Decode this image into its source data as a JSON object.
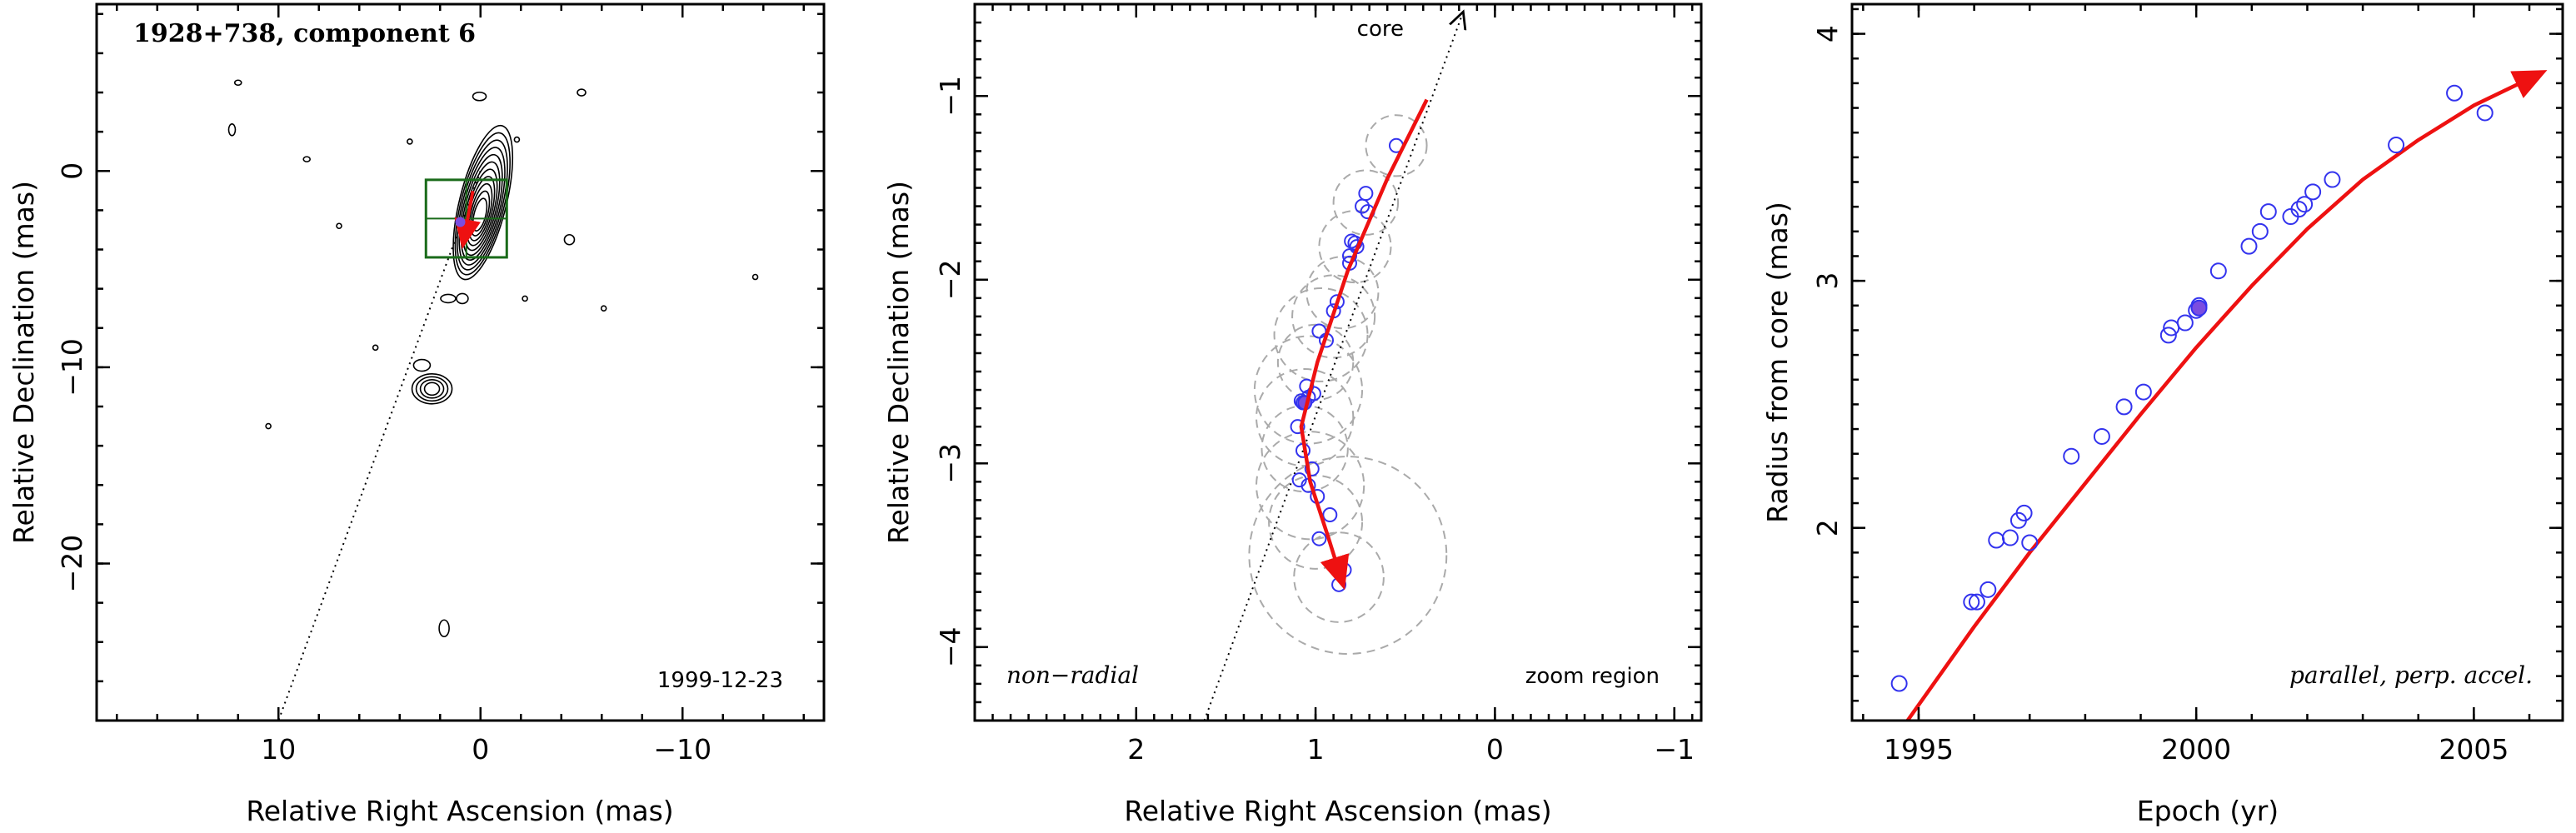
{
  "chart_data": [
    {
      "type": "contour",
      "title": "1928+738, component 6",
      "date_label": "1999-12-23",
      "xlabel": "Relative Right Ascension (mas)",
      "ylabel": "Relative Declination (mas)",
      "xlim": [
        19,
        -17
      ],
      "ylim": [
        -28,
        8.5
      ],
      "xticks": [
        10,
        0,
        -10
      ],
      "xtick_labels": [
        "10",
        "0",
        "−10"
      ],
      "yticks": [
        0,
        -10,
        -20
      ],
      "ytick_labels": [
        "0",
        "−10",
        "−20"
      ],
      "zoom_box": {
        "x": [
          2.7,
          -1.3
        ],
        "y": [
          -4.4,
          -0.45
        ],
        "color": "#1a6b1a"
      },
      "jet_direction_line": [
        [
          0.0,
          0.0
        ],
        [
          10.0,
          -28.0
        ]
      ],
      "trajectory_arrow": [
        [
          0.38,
          -1.02
        ],
        [
          0.85,
          -3.65
        ]
      ]
    },
    {
      "type": "scatter",
      "xlabel": "Relative Right Ascension (mas)",
      "ylabel": "Relative Declination (mas)",
      "xlim": [
        2.9,
        -1.15
      ],
      "ylim": [
        -4.4,
        -0.5
      ],
      "xticks": [
        2,
        1,
        0,
        -1
      ],
      "xtick_labels": [
        "2",
        "1",
        "0",
        "−1"
      ],
      "yticks": [
        -1,
        -2,
        -3,
        -4
      ],
      "ytick_labels": [
        "−1",
        "−2",
        "−3",
        "−4"
      ],
      "annotation_core": "core",
      "annotation_left": "non−radial",
      "annotation_right": "zoom region",
      "radial_line": [
        [
          1.62,
          -4.4
        ],
        [
          0.18,
          -0.55
        ]
      ],
      "arrow_path": [
        [
          0.38,
          -1.02
        ],
        [
          0.6,
          -1.45
        ],
        [
          0.82,
          -1.95
        ],
        [
          0.99,
          -2.45
        ],
        [
          1.08,
          -2.8
        ],
        [
          1.03,
          -3.1
        ],
        [
          0.93,
          -3.4
        ],
        [
          0.85,
          -3.65
        ]
      ],
      "points": [
        [
          0.55,
          -1.27
        ],
        [
          0.72,
          -1.53
        ],
        [
          0.74,
          -1.6
        ],
        [
          0.71,
          -1.63
        ],
        [
          0.78,
          -1.8
        ],
        [
          0.77,
          -1.82
        ],
        [
          0.8,
          -1.79
        ],
        [
          0.81,
          -1.87
        ],
        [
          0.81,
          -1.91
        ],
        [
          0.88,
          -2.12
        ],
        [
          0.9,
          -2.17
        ],
        [
          0.98,
          -2.28
        ],
        [
          0.94,
          -2.33
        ],
        [
          1.05,
          -2.58
        ],
        [
          1.04,
          -2.64
        ],
        [
          1.01,
          -2.62
        ],
        [
          1.08,
          -2.66
        ],
        [
          1.07,
          -2.67
        ],
        [
          1.1,
          -2.8
        ],
        [
          1.07,
          -2.93
        ],
        [
          1.02,
          -3.03
        ],
        [
          1.09,
          -3.09
        ],
        [
          1.04,
          -3.12
        ],
        [
          0.99,
          -3.18
        ],
        [
          0.92,
          -3.28
        ],
        [
          0.98,
          -3.41
        ],
        [
          0.84,
          -3.58
        ],
        [
          0.87,
          -3.66
        ]
      ],
      "highlight_point": [
        1.06,
        -2.67
      ],
      "error_circles": [
        [
          0.55,
          -1.27,
          0.17
        ],
        [
          0.72,
          -1.58,
          0.18
        ],
        [
          0.78,
          -1.82,
          0.2
        ],
        [
          0.85,
          -2.07,
          0.2
        ],
        [
          0.9,
          -2.2,
          0.23
        ],
        [
          0.97,
          -2.3,
          0.26
        ],
        [
          1.0,
          -2.45,
          0.21
        ],
        [
          1.04,
          -2.6,
          0.3
        ],
        [
          1.06,
          -2.75,
          0.27
        ],
        [
          1.06,
          -2.92,
          0.24
        ],
        [
          1.03,
          -3.12,
          0.3
        ],
        [
          1.0,
          -3.32,
          0.26
        ],
        [
          0.82,
          -3.5,
          0.55
        ],
        [
          0.87,
          -3.62,
          0.25
        ]
      ]
    },
    {
      "type": "scatter",
      "xlabel": "Epoch (yr)",
      "ylabel": "Radius from core (mas)",
      "annotation": "parallel, perp. accel.",
      "xlim": [
        1993.8,
        2006.6
      ],
      "ylim": [
        1.22,
        4.12
      ],
      "xticks": [
        1995,
        2000,
        2005
      ],
      "xtick_labels": [
        "1995",
        "2000",
        "2005"
      ],
      "yticks": [
        2,
        3,
        4
      ],
      "ytick_labels": [
        "2",
        "3",
        "4"
      ],
      "points": [
        [
          1994.65,
          1.37
        ],
        [
          1995.95,
          1.7
        ],
        [
          1996.05,
          1.7
        ],
        [
          1996.25,
          1.75
        ],
        [
          1996.4,
          1.95
        ],
        [
          1996.65,
          1.96
        ],
        [
          1996.8,
          2.03
        ],
        [
          1996.9,
          2.06
        ],
        [
          1997.0,
          1.94
        ],
        [
          1997.75,
          2.29
        ],
        [
          1998.3,
          2.37
        ],
        [
          1998.7,
          2.49
        ],
        [
          1999.05,
          2.55
        ],
        [
          1999.5,
          2.78
        ],
        [
          1999.55,
          2.81
        ],
        [
          1999.8,
          2.83
        ],
        [
          2000.0,
          2.88
        ],
        [
          2000.05,
          2.9
        ],
        [
          2000.4,
          3.04
        ],
        [
          2000.95,
          3.14
        ],
        [
          2001.15,
          3.2
        ],
        [
          2001.3,
          3.28
        ],
        [
          2001.7,
          3.26
        ],
        [
          2001.85,
          3.29
        ],
        [
          2001.95,
          3.31
        ],
        [
          2002.1,
          3.36
        ],
        [
          2002.45,
          3.41
        ],
        [
          2003.6,
          3.55
        ],
        [
          2004.65,
          3.76
        ],
        [
          2005.2,
          3.68
        ]
      ],
      "highlight_point": [
        2000.05,
        2.89
      ],
      "fit_curve": [
        [
          1994.8,
          1.22
        ],
        [
          1996.0,
          1.6
        ],
        [
          1997.0,
          1.9
        ],
        [
          1998.0,
          2.18
        ],
        [
          1999.0,
          2.46
        ],
        [
          2000.0,
          2.73
        ],
        [
          2001.0,
          2.98
        ],
        [
          2002.0,
          3.21
        ],
        [
          2003.0,
          3.41
        ],
        [
          2004.0,
          3.57
        ],
        [
          2005.0,
          3.71
        ],
        [
          2006.2,
          3.84
        ]
      ]
    }
  ]
}
